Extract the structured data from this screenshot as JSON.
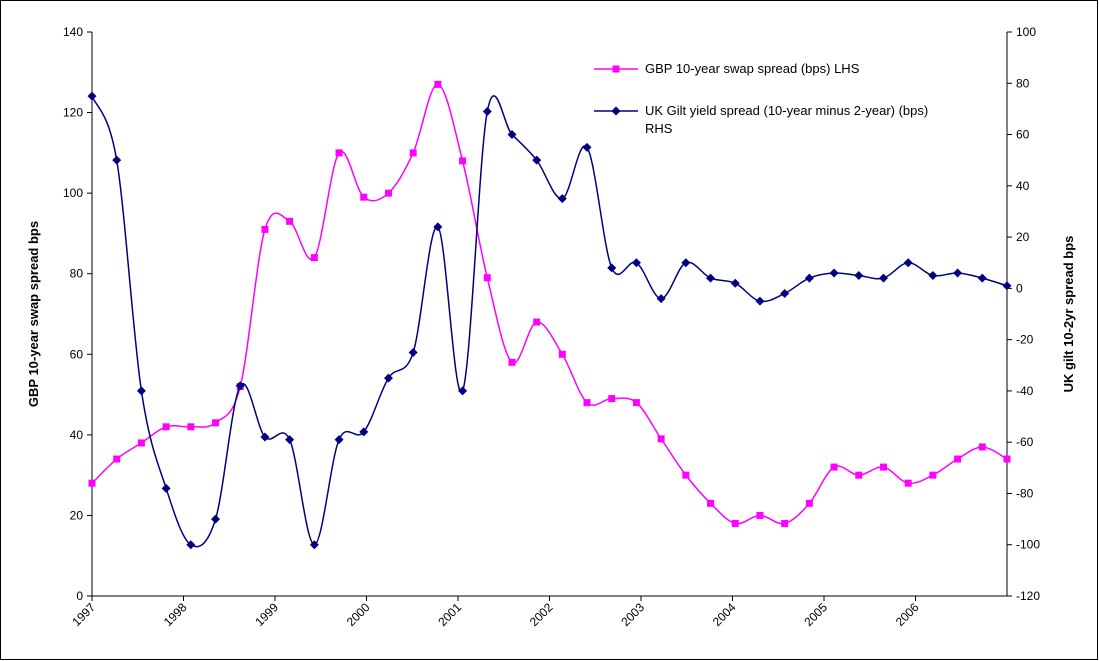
{
  "chart_data": {
    "type": "line",
    "y_label": "GBP 10-year swap spread bps",
    "y2_label": "UK gilt 10-2yr spread bps",
    "x": [
      1997,
      1997.27,
      1997.54,
      1997.81,
      1998.08,
      1998.35,
      1998.62,
      1998.89,
      1999.16,
      1999.43,
      1999.7,
      1999.97,
      2000.24,
      2000.51,
      2000.78,
      2001.05,
      2001.32,
      2001.59,
      2001.86,
      2002.14,
      2002.41,
      2002.68,
      2002.95,
      2003.22,
      2003.49,
      2003.76,
      2004.03,
      2004.3,
      2004.57,
      2004.84,
      2005.11,
      2005.38,
      2005.65,
      2005.92,
      2006.19,
      2006.46,
      2006.73,
      2007
    ],
    "series": [
      {
        "name": "GBP 10-year swap spread (bps) LHS",
        "color": "#ff00ff",
        "marker": "square",
        "values": [
          28,
          34,
          38,
          42,
          42,
          43,
          52,
          91,
          93,
          84,
          110,
          99,
          100,
          110,
          127,
          108,
          79,
          58,
          68,
          60,
          48,
          49,
          48,
          39,
          30,
          23,
          18,
          20,
          18,
          23,
          32,
          30,
          32,
          28,
          30,
          34,
          37,
          34
        ]
      },
      {
        "name": "UK Gilt yield spread (10-year minus 2-year) (bps) RHS",
        "color": "#000080",
        "marker": "diamond",
        "axis": "y2",
        "values": [
          75,
          50,
          -40,
          -78,
          -100,
          -90,
          -38,
          -58,
          -59,
          -100,
          -59,
          -56,
          -35,
          -25,
          24,
          -40,
          69,
          60,
          50,
          35,
          55,
          8,
          10,
          -4,
          10,
          4,
          2,
          -5,
          -2,
          4,
          6,
          5,
          4,
          10,
          5,
          6,
          4,
          1
        ]
      }
    ],
    "xlim": [
      1997,
      2007
    ],
    "xticks": [
      1997,
      1998,
      1999,
      2000,
      2001,
      2002,
      2003,
      2004,
      2005,
      2006
    ],
    "ylim": [
      0,
      140
    ],
    "yticks": [
      0,
      20,
      40,
      60,
      80,
      100,
      120,
      140
    ],
    "y2lim": [
      -120,
      100
    ],
    "y2ticks": [
      -120,
      -100,
      -80,
      -60,
      -40,
      -20,
      0,
      20,
      40,
      60,
      80,
      100
    ],
    "smooth": true
  }
}
